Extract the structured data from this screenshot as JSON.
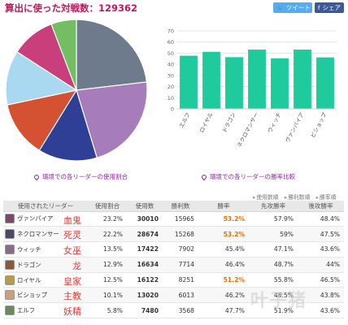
{
  "header": {
    "title": "算出に使った対戦数：129362",
    "share_twitter": "ツイート",
    "share_facebook": "シェア",
    "facebook_mark": "f"
  },
  "captions": {
    "pie": "環境での各リーダーの使用割合",
    "bar": "環境での各リーダーの勝率比較"
  },
  "sort_links": [
    "使用数順",
    "勝利数順",
    "勝率順"
  ],
  "table": {
    "headers": [
      "使用されたリーダー",
      "使用割合",
      "使用数",
      "勝利数",
      "勝率",
      "先攻勝率",
      "後攻勝率"
    ],
    "rows": [
      {
        "leader": "ヴァンパイア",
        "cn": "血鬼",
        "share": "23.2%",
        "uses": "30010",
        "wins": "15965",
        "rate": "53.2%",
        "first": "57.9%",
        "second": "48.4%"
      },
      {
        "leader": "ネクロマンサー",
        "cn": "死灵",
        "share": "22.2%",
        "uses": "28674",
        "wins": "15268",
        "rate": "53.2%",
        "first": "59%",
        "second": "47.5%"
      },
      {
        "leader": "ウィッチ",
        "cn": "女巫",
        "share": "13.5%",
        "uses": "17422",
        "wins": "7902",
        "rate": "45.4%",
        "first": "47.1%",
        "second": "43.6%"
      },
      {
        "leader": "ドラゴン",
        "cn": "龙",
        "share": "12.9%",
        "uses": "16634",
        "wins": "7714",
        "rate": "46.4%",
        "first": "48.7%",
        "second": "44%"
      },
      {
        "leader": "ロイヤル",
        "cn": "皇家",
        "share": "12.5%",
        "uses": "16122",
        "wins": "8251",
        "rate": "51.2%",
        "first": "55.8%",
        "second": "46.5%"
      },
      {
        "leader": "ビショップ",
        "cn": "主教",
        "share": "10.1%",
        "uses": "13020",
        "wins": "6013",
        "rate": "46.2%",
        "first": "48.5%",
        "second": "43.8%"
      },
      {
        "leader": "エルフ",
        "cn": "妖精",
        "share": "5.8%",
        "uses": "7480",
        "wins": "3568",
        "rate": "47.7%",
        "first": "51.9%",
        "second": "43.6%"
      }
    ]
  },
  "watermark": "叶子猪",
  "chart_data": [
    {
      "type": "pie",
      "title": "",
      "categories": [
        "ヴァンパイア",
        "ネクロマンサー",
        "ウィッチ",
        "ドラゴン",
        "ロイヤル",
        "ビショップ",
        "エルフ"
      ],
      "values": [
        23.2,
        22.2,
        13.5,
        12.9,
        12.5,
        10.1,
        5.8
      ],
      "colors": [
        "#6d7b8d",
        "#a77cba",
        "#2f3f95",
        "#d45232",
        "#a9d8f1",
        "#c83f7b",
        "#73bd62"
      ],
      "start": "top, clockwise"
    },
    {
      "type": "bar",
      "title": "",
      "categories": [
        "エルフ",
        "ロイヤル",
        "ドラゴン",
        "ネクロマンサー",
        "ウィッチ",
        "ヴァンパイア",
        "ビショップ"
      ],
      "values": [
        47.7,
        51.2,
        46.4,
        53.2,
        45.4,
        53.2,
        46.2
      ],
      "ylim": [
        0,
        70
      ],
      "yticks": [
        0,
        10,
        20,
        30,
        40,
        50,
        60,
        70
      ],
      "grid": true,
      "color": "#1fcb9d",
      "xlabel": "",
      "ylabel": ""
    }
  ]
}
